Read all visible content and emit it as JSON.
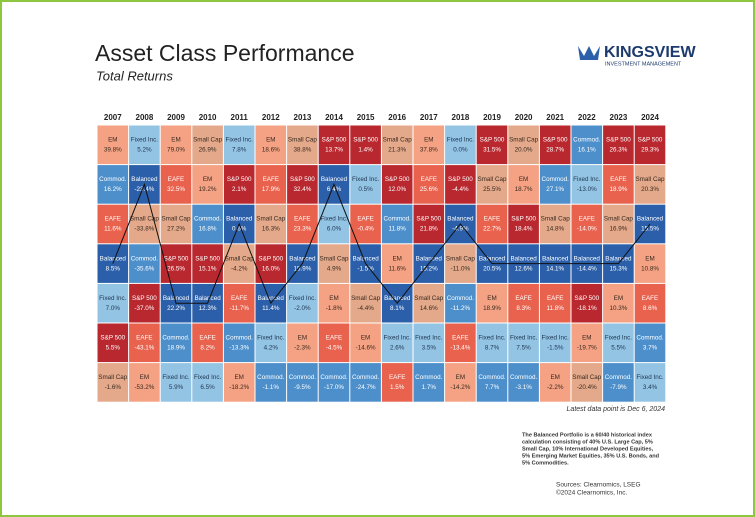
{
  "header": {
    "title": "Asset Class Performance",
    "subtitle": "Total Returns",
    "logo": "KINGSVIEW",
    "logo_tagline": "INVESTMENT MANAGEMENT"
  },
  "table": {
    "asset_colors": {
      "EM": [
        "#f4a283",
        "#3a2a20"
      ],
      "Fixed Inc.": [
        "#94c4e4",
        "#1d3550"
      ],
      "Small Cap": [
        "#e3a98a",
        "#3a2a20"
      ],
      "Commod.": [
        "#4c8fcb",
        "#ffffff"
      ],
      "Balanced": [
        "#2b5fa9",
        "#ffffff"
      ],
      "S&P 500": [
        "#b9282f",
        "#ffffff"
      ],
      "EAFE": [
        "#e8624d",
        "#ffffff"
      ]
    },
    "highlight": "Balanced",
    "years": [
      "2007",
      "2008",
      "2009",
      "2010",
      "2011",
      "2012",
      "2013",
      "2014",
      "2015",
      "2016",
      "2017",
      "2018",
      "2019",
      "2020",
      "2021",
      "2022",
      "2023",
      "2024"
    ],
    "columns": [
      [
        [
          "EM",
          "39.8%"
        ],
        [
          "Commod.",
          "16.2%"
        ],
        [
          "EAFE",
          "11.6%"
        ],
        [
          "Balanced",
          "8.5%"
        ],
        [
          "Fixed Inc.",
          "7.0%"
        ],
        [
          "S&P 500",
          "5.5%"
        ],
        [
          "Small Cap",
          "-1.6%"
        ]
      ],
      [
        [
          "Fixed Inc.",
          "5.2%"
        ],
        [
          "Balanced",
          "-23.4%"
        ],
        [
          "Small Cap",
          "-33.8%"
        ],
        [
          "Commod.",
          "-35.6%"
        ],
        [
          "S&P 500",
          "-37.0%"
        ],
        [
          "EAFE",
          "-43.1%"
        ],
        [
          "EM",
          "-53.2%"
        ]
      ],
      [
        [
          "EM",
          "79.0%"
        ],
        [
          "EAFE",
          "32.5%"
        ],
        [
          "Small Cap",
          "27.2%"
        ],
        [
          "S&P 500",
          "26.5%"
        ],
        [
          "Balanced",
          "22.2%"
        ],
        [
          "Commod.",
          "18.9%"
        ],
        [
          "Fixed Inc.",
          "5.9%"
        ]
      ],
      [
        [
          "Small Cap",
          "26.9%"
        ],
        [
          "EM",
          "19.2%"
        ],
        [
          "Commod.",
          "16.8%"
        ],
        [
          "S&P 500",
          "15.1%"
        ],
        [
          "Balanced",
          "12.3%"
        ],
        [
          "EAFE",
          "8.2%"
        ],
        [
          "Fixed Inc.",
          "6.5%"
        ]
      ],
      [
        [
          "Fixed Inc.",
          "7.8%"
        ],
        [
          "S&P 500",
          "2.1%"
        ],
        [
          "Balanced",
          "0.6%"
        ],
        [
          "Small Cap",
          "-4.2%"
        ],
        [
          "EAFE",
          "-11.7%"
        ],
        [
          "Commod.",
          "-13.3%"
        ],
        [
          "EM",
          "-18.2%"
        ]
      ],
      [
        [
          "EM",
          "18.6%"
        ],
        [
          "EAFE",
          "17.9%"
        ],
        [
          "Small Cap",
          "16.3%"
        ],
        [
          "S&P 500",
          "16.0%"
        ],
        [
          "Balanced",
          "11.4%"
        ],
        [
          "Fixed Inc.",
          "4.2%"
        ],
        [
          "Commod.",
          "-1.1%"
        ]
      ],
      [
        [
          "Small Cap",
          "38.8%"
        ],
        [
          "S&P 500",
          "32.4%"
        ],
        [
          "EAFE",
          "23.3%"
        ],
        [
          "Balanced",
          "15.9%"
        ],
        [
          "Fixed Inc.",
          "-2.0%"
        ],
        [
          "EM",
          "-2.3%"
        ],
        [
          "Commod.",
          "-9.5%"
        ]
      ],
      [
        [
          "S&P 500",
          "13.7%"
        ],
        [
          "Balanced",
          "6.4%"
        ],
        [
          "Fixed Inc.",
          "6.0%"
        ],
        [
          "Small Cap",
          "4.9%"
        ],
        [
          "EM",
          "-1.8%"
        ],
        [
          "EAFE",
          "-4.5%"
        ],
        [
          "Commod.",
          "-17.0%"
        ]
      ],
      [
        [
          "S&P 500",
          "1.4%"
        ],
        [
          "Fixed Inc.",
          "0.5%"
        ],
        [
          "EAFE",
          "-0.4%"
        ],
        [
          "Balanced",
          "-1.5%"
        ],
        [
          "Small Cap",
          "-4.4%"
        ],
        [
          "EM",
          "-14.6%"
        ],
        [
          "Commod.",
          "-24.7%"
        ]
      ],
      [
        [
          "Small Cap",
          "21.3%"
        ],
        [
          "S&P 500",
          "12.0%"
        ],
        [
          "Commod.",
          "11.8%"
        ],
        [
          "EM",
          "11.6%"
        ],
        [
          "Balanced",
          "8.1%"
        ],
        [
          "Fixed Inc.",
          "2.6%"
        ],
        [
          "EAFE",
          "1.5%"
        ]
      ],
      [
        [
          "EM",
          "37.8%"
        ],
        [
          "EAFE",
          "25.6%"
        ],
        [
          "S&P 500",
          "21.8%"
        ],
        [
          "Balanced",
          "15.2%"
        ],
        [
          "Small Cap",
          "14.6%"
        ],
        [
          "Fixed Inc.",
          "3.5%"
        ],
        [
          "Commod.",
          "1.7%"
        ]
      ],
      [
        [
          "Fixed Inc.",
          "0.0%"
        ],
        [
          "S&P 500",
          "-4.4%"
        ],
        [
          "Balanced",
          "-4.9%"
        ],
        [
          "Small Cap",
          "-11.0%"
        ],
        [
          "Commod.",
          "-11.2%"
        ],
        [
          "EAFE",
          "-13.4%"
        ],
        [
          "EM",
          "-14.2%"
        ]
      ],
      [
        [
          "S&P 500",
          "31.5%"
        ],
        [
          "Small Cap",
          "25.5%"
        ],
        [
          "EAFE",
          "22.7%"
        ],
        [
          "Balanced",
          "20.5%"
        ],
        [
          "EM",
          "18.9%"
        ],
        [
          "Fixed Inc.",
          "8.7%"
        ],
        [
          "Commod.",
          "7.7%"
        ]
      ],
      [
        [
          "Small Cap",
          "20.0%"
        ],
        [
          "EM",
          "18.7%"
        ],
        [
          "S&P 500",
          "18.4%"
        ],
        [
          "Balanced",
          "12.6%"
        ],
        [
          "EAFE",
          "8.3%"
        ],
        [
          "Fixed Inc.",
          "7.5%"
        ],
        [
          "Commod.",
          "-3.1%"
        ]
      ],
      [
        [
          "S&P 500",
          "28.7%"
        ],
        [
          "Commod.",
          "27.1%"
        ],
        [
          "Small Cap",
          "14.8%"
        ],
        [
          "Balanced",
          "14.1%"
        ],
        [
          "EAFE",
          "11.8%"
        ],
        [
          "Fixed Inc.",
          "-1.5%"
        ],
        [
          "EM",
          "-2.2%"
        ]
      ],
      [
        [
          "Commod.",
          "16.1%"
        ],
        [
          "Fixed Inc.",
          "-13.0%"
        ],
        [
          "EAFE",
          "-14.0%"
        ],
        [
          "Balanced",
          "-14.4%"
        ],
        [
          "S&P 500",
          "-18.1%"
        ],
        [
          "EM",
          "-19.7%"
        ],
        [
          "Small Cap",
          "-20.4%"
        ]
      ],
      [
        [
          "S&P 500",
          "26.3%"
        ],
        [
          "EAFE",
          "18.9%"
        ],
        [
          "Small Cap",
          "16.9%"
        ],
        [
          "Balanced",
          "15.3%"
        ],
        [
          "EM",
          "10.3%"
        ],
        [
          "Fixed Inc.",
          "5.5%"
        ],
        [
          "Commod.",
          "-7.9%"
        ]
      ],
      [
        [
          "S&P 500",
          "29.3%"
        ],
        [
          "Small Cap",
          "20.3%"
        ],
        [
          "Balanced",
          "15.5%"
        ],
        [
          "EM",
          "10.8%"
        ],
        [
          "EAFE",
          "8.6%"
        ],
        [
          "Commod.",
          "3.7%"
        ],
        [
          "Fixed Inc.",
          "3.4%"
        ]
      ]
    ]
  },
  "footer": {
    "latest": "Latest data point is Dec 6, 2024",
    "note": [
      "The Balanced Portfolio is a 60/40 historical index",
      "calculation consisting of 40% U.S. Large Cap, 5%",
      "Small Cap, 10% International Developed Equities,",
      "5% Emerging Market Equities, 35% U.S. Bonds, and",
      "5% Commodities."
    ],
    "sources": [
      "Sources: Clearnomics, LSEG",
      "©2024 Clearnomics, Inc."
    ]
  }
}
